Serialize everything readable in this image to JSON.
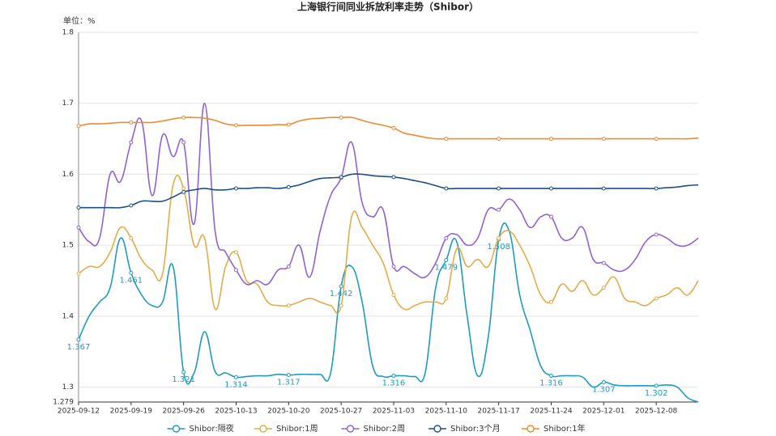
{
  "chart_data": {
    "type": "line",
    "title": "上海银行间同业拆放利率走势（Shibor）",
    "y_label": "单位：%",
    "categories": [
      "2025-09-12",
      null,
      null,
      null,
      null,
      "2025-09-19",
      null,
      null,
      null,
      null,
      "2025-09-26",
      null,
      null,
      null,
      null,
      "2025-10-13",
      null,
      null,
      null,
      null,
      "2025-10-20",
      null,
      null,
      null,
      null,
      "2025-10-27",
      null,
      null,
      null,
      null,
      "2025-11-03",
      null,
      null,
      null,
      null,
      "2025-11-10",
      null,
      null,
      null,
      null,
      "2025-11-17",
      null,
      null,
      null,
      null,
      "2025-11-24",
      null,
      null,
      null,
      null,
      "2025-12-01",
      null,
      null,
      null,
      null,
      "2025-12-08",
      null,
      null,
      null,
      null
    ],
    "ylim": [
      1.279,
      1.8
    ],
    "yticks": [
      1.279,
      1.3,
      1.4,
      1.5,
      1.6,
      1.7,
      1.8
    ],
    "grid": true,
    "smooth": true,
    "legend": "bottom",
    "series": [
      {
        "name": "Shibor:隔夜",
        "color": "#1f9bc0",
        "show_labels": true,
        "values": [
          1.367,
          1.4,
          1.42,
          1.44,
          1.51,
          1.461,
          1.43,
          1.415,
          1.42,
          1.47,
          1.321,
          1.32,
          1.378,
          1.322,
          1.32,
          1.314,
          1.315,
          1.316,
          1.316,
          1.318,
          1.317,
          1.318,
          1.318,
          1.318,
          1.32,
          1.442,
          1.47,
          1.42,
          1.33,
          1.315,
          1.316,
          1.316,
          1.315,
          1.32,
          1.44,
          1.479,
          1.505,
          1.4,
          1.316,
          1.37,
          1.508,
          1.52,
          1.43,
          1.38,
          1.33,
          1.316,
          1.316,
          1.316,
          1.314,
          1.3,
          1.307,
          1.303,
          1.302,
          1.302,
          1.302,
          1.302,
          1.303,
          1.3,
          1.285,
          1.279
        ]
      },
      {
        "name": "Shibor:1周",
        "color": "#e3ac4a",
        "values": [
          1.46,
          1.47,
          1.47,
          1.49,
          1.525,
          1.51,
          1.48,
          1.465,
          1.46,
          1.585,
          1.58,
          1.5,
          1.51,
          1.41,
          1.47,
          1.49,
          1.45,
          1.445,
          1.42,
          1.415,
          1.415,
          1.42,
          1.425,
          1.42,
          1.415,
          1.415,
          1.54,
          1.525,
          1.5,
          1.475,
          1.43,
          1.41,
          1.415,
          1.42,
          1.42,
          1.425,
          1.495,
          1.47,
          1.48,
          1.47,
          1.51,
          1.52,
          1.5,
          1.47,
          1.43,
          1.42,
          1.445,
          1.435,
          1.45,
          1.43,
          1.44,
          1.455,
          1.425,
          1.42,
          1.415,
          1.425,
          1.43,
          1.44,
          1.43,
          1.45
        ]
      },
      {
        "name": "Shibor:2周",
        "color": "#8e63d6",
        "values": [
          1.525,
          1.505,
          1.51,
          1.6,
          1.59,
          1.645,
          1.675,
          1.57,
          1.655,
          1.625,
          1.645,
          1.53,
          1.7,
          1.52,
          1.49,
          1.465,
          1.445,
          1.45,
          1.445,
          1.465,
          1.47,
          1.5,
          1.455,
          1.52,
          1.57,
          1.595,
          1.645,
          1.56,
          1.54,
          1.55,
          1.47,
          1.47,
          1.46,
          1.455,
          1.475,
          1.51,
          1.515,
          1.5,
          1.51,
          1.55,
          1.55,
          1.565,
          1.55,
          1.525,
          1.54,
          1.54,
          1.51,
          1.51,
          1.525,
          1.48,
          1.475,
          1.465,
          1.465,
          1.48,
          1.505,
          1.515,
          1.51,
          1.5,
          1.5,
          1.51
        ]
      },
      {
        "name": "Shibor:3个月",
        "color": "#1d4f86",
        "values": [
          1.553,
          1.553,
          1.553,
          1.553,
          1.553,
          1.556,
          1.562,
          1.562,
          1.562,
          1.568,
          1.575,
          1.578,
          1.58,
          1.578,
          1.578,
          1.58,
          1.58,
          1.581,
          1.581,
          1.58,
          1.582,
          1.585,
          1.59,
          1.594,
          1.595,
          1.596,
          1.6,
          1.6,
          1.598,
          1.597,
          1.596,
          1.594,
          1.591,
          1.588,
          1.584,
          1.58,
          1.58,
          1.58,
          1.58,
          1.58,
          1.58,
          1.58,
          1.58,
          1.58,
          1.58,
          1.58,
          1.58,
          1.58,
          1.58,
          1.58,
          1.58,
          1.58,
          1.58,
          1.58,
          1.58,
          1.58,
          1.581,
          1.582,
          1.584,
          1.585
        ]
      },
      {
        "name": "Shibor:1年",
        "color": "#ef8a2e",
        "values": [
          1.668,
          1.671,
          1.671,
          1.672,
          1.673,
          1.673,
          1.673,
          1.673,
          1.675,
          1.678,
          1.68,
          1.68,
          1.679,
          1.676,
          1.671,
          1.669,
          1.669,
          1.669,
          1.669,
          1.67,
          1.67,
          1.675,
          1.678,
          1.679,
          1.68,
          1.68,
          1.68,
          1.676,
          1.672,
          1.669,
          1.665,
          1.658,
          1.655,
          1.652,
          1.65,
          1.65,
          1.65,
          1.65,
          1.65,
          1.65,
          1.65,
          1.65,
          1.65,
          1.65,
          1.65,
          1.65,
          1.65,
          1.65,
          1.65,
          1.65,
          1.65,
          1.65,
          1.65,
          1.65,
          1.65,
          1.65,
          1.65,
          1.65,
          1.65,
          1.651
        ]
      }
    ]
  }
}
